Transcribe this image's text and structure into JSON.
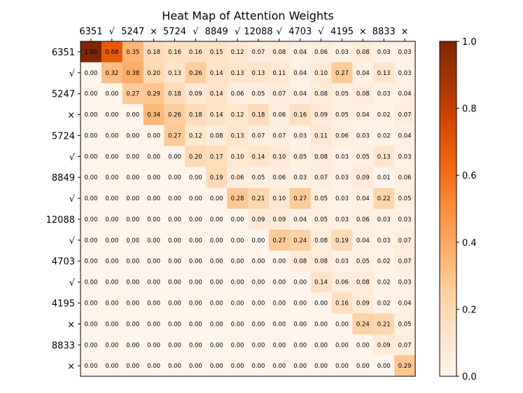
{
  "chart_data": {
    "type": "heatmap",
    "title": "Heat Map of Attention Weights",
    "xlabel": "",
    "ylabel": "",
    "x_tick_labels": [
      "6351",
      "√",
      "5247",
      "×",
      "5724",
      "√",
      "8849",
      "√",
      "12088",
      "√",
      "4703",
      "√",
      "4195",
      "×",
      "8833",
      "×"
    ],
    "y_tick_labels": [
      "6351",
      "√",
      "5247",
      "×",
      "5724",
      "√",
      "8849",
      "√",
      "12088",
      "√",
      "4703",
      "√",
      "4195",
      "×",
      "8833",
      "×"
    ],
    "colormap": "Oranges",
    "color_range": [
      0.0,
      1.0
    ],
    "colorbar_ticks": [
      "0.0",
      "0.2",
      "0.4",
      "0.6",
      "0.8",
      "1.0"
    ],
    "colors": {
      "low": "#fff5eb",
      "high": "#7f2704"
    },
    "values": [
      [
        1.0,
        0.68,
        0.35,
        0.18,
        0.16,
        0.16,
        0.15,
        0.12,
        0.07,
        0.08,
        0.04,
        0.06,
        0.03,
        0.08,
        0.03,
        0.03
      ],
      [
        0.0,
        0.32,
        0.38,
        0.2,
        0.13,
        0.26,
        0.14,
        0.13,
        0.13,
        0.11,
        0.04,
        0.1,
        0.27,
        0.04,
        0.13,
        0.03
      ],
      [
        0.0,
        0.0,
        0.27,
        0.29,
        0.18,
        0.09,
        0.14,
        0.06,
        0.05,
        0.07,
        0.04,
        0.08,
        0.05,
        0.08,
        0.03,
        0.04
      ],
      [
        0.0,
        0.0,
        0.0,
        0.34,
        0.26,
        0.18,
        0.14,
        0.12,
        0.18,
        0.06,
        0.16,
        0.09,
        0.05,
        0.04,
        0.02,
        0.07
      ],
      [
        0.0,
        0.0,
        0.0,
        0.0,
        0.27,
        0.12,
        0.08,
        0.13,
        0.07,
        0.07,
        0.03,
        0.11,
        0.06,
        0.03,
        0.02,
        0.04
      ],
      [
        0.0,
        0.0,
        0.0,
        0.0,
        0.0,
        0.2,
        0.17,
        0.1,
        0.14,
        0.1,
        0.05,
        0.08,
        0.03,
        0.05,
        0.13,
        0.03
      ],
      [
        0.0,
        0.0,
        0.0,
        0.0,
        0.0,
        0.0,
        0.19,
        0.06,
        0.05,
        0.06,
        0.03,
        0.07,
        0.03,
        0.09,
        0.01,
        0.06
      ],
      [
        0.0,
        0.0,
        0.0,
        0.0,
        0.0,
        0.0,
        0.0,
        0.28,
        0.21,
        0.1,
        0.27,
        0.05,
        0.03,
        0.04,
        0.22,
        0.05
      ],
      [
        0.0,
        0.0,
        0.0,
        0.0,
        0.0,
        0.0,
        0.0,
        0.0,
        0.09,
        0.09,
        0.04,
        0.05,
        0.03,
        0.06,
        0.03,
        0.03
      ],
      [
        0.0,
        0.0,
        0.0,
        0.0,
        0.0,
        0.0,
        0.0,
        0.0,
        0.0,
        0.27,
        0.24,
        0.08,
        0.19,
        0.04,
        0.03,
        0.07
      ],
      [
        0.0,
        0.0,
        0.0,
        0.0,
        0.0,
        0.0,
        0.0,
        0.0,
        0.0,
        0.0,
        0.08,
        0.08,
        0.03,
        0.05,
        0.02,
        0.07
      ],
      [
        0.0,
        0.0,
        0.0,
        0.0,
        0.0,
        0.0,
        0.0,
        0.0,
        0.0,
        0.0,
        0.0,
        0.14,
        0.06,
        0.08,
        0.02,
        0.03
      ],
      [
        0.0,
        0.0,
        0.0,
        0.0,
        0.0,
        0.0,
        0.0,
        0.0,
        0.0,
        0.0,
        0.0,
        0.0,
        0.16,
        0.09,
        0.02,
        0.04
      ],
      [
        0.0,
        0.0,
        0.0,
        0.0,
        0.0,
        0.0,
        0.0,
        0.0,
        0.0,
        0.0,
        0.0,
        0.0,
        0.0,
        0.24,
        0.21,
        0.05
      ],
      [
        0.0,
        0.0,
        0.0,
        0.0,
        0.0,
        0.0,
        0.0,
        0.0,
        0.0,
        0.0,
        0.0,
        0.0,
        0.0,
        0.0,
        0.09,
        0.07
      ],
      [
        0.0,
        0.0,
        0.0,
        0.0,
        0.0,
        0.0,
        0.0,
        0.0,
        0.0,
        0.0,
        0.0,
        0.0,
        0.0,
        0.0,
        0.0,
        0.29
      ]
    ]
  }
}
